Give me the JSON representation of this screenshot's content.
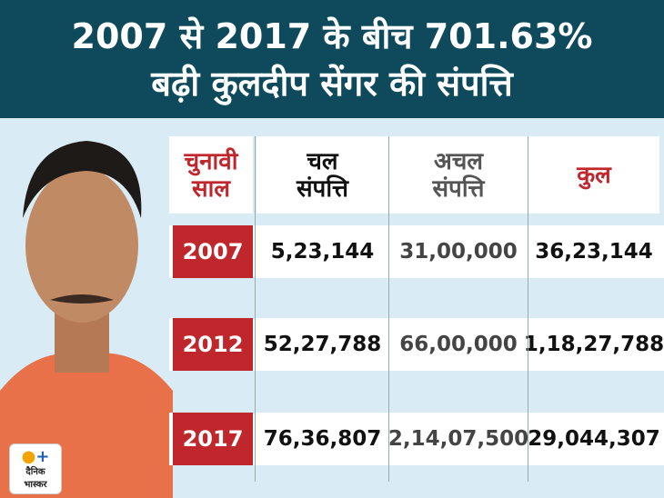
{
  "header": {
    "title_lines": [
      "2007 से 2017 के बीच 701.63%",
      "बढ़ी कुलदीप सेंगर की संपत्ति"
    ]
  },
  "table": {
    "columns": [
      [
        "चुनावी",
        "साल"
      ],
      [
        "चल",
        "संपत्ति"
      ],
      [
        "अचल",
        "संपत्ति"
      ],
      [
        "कुल"
      ]
    ],
    "rows": [
      [
        "2007",
        "5,23,144",
        "31,00,000",
        "36,23,144"
      ],
      [
        "2012",
        "52,27,788",
        "66,00,000",
        "1,18,27,788"
      ],
      [
        "2017",
        "76,36,807",
        "2,14,07,500",
        "29,044,307"
      ]
    ]
  },
  "logo": {
    "lines": [
      "दैनिक",
      "भास्कर"
    ]
  }
}
